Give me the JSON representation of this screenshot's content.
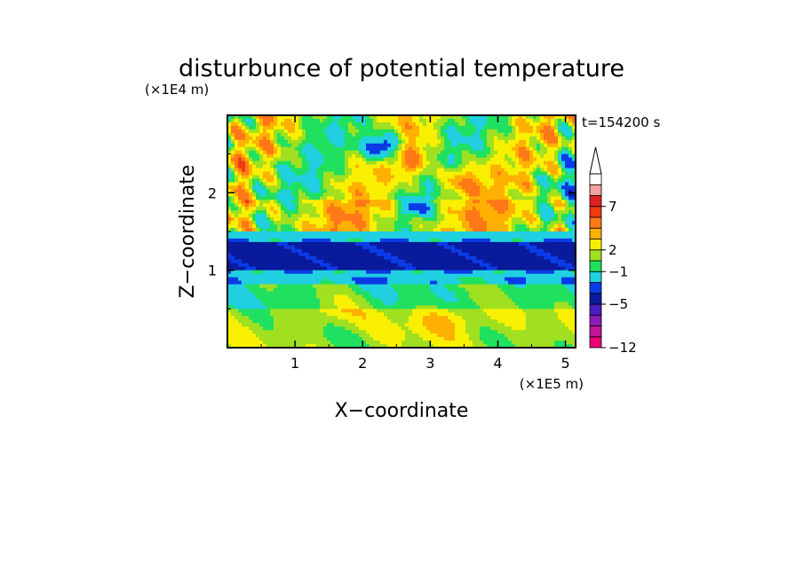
{
  "chart_data": {
    "type": "heatmap",
    "title": "disturbunce of potential temperature",
    "time_label": "t=154200 s",
    "xlabel": "X−coordinate",
    "ylabel": "Z−coordinate",
    "x_unit": "(×1E5 m)",
    "y_unit": "(×1E4 m)",
    "xlim": [
      0,
      5.15
    ],
    "ylim": [
      0,
      3.0
    ],
    "x_ticks": [
      "1",
      "2",
      "3",
      "4",
      "5"
    ],
    "y_ticks": [
      "1",
      "2"
    ],
    "colorbar": {
      "tick_labels": [
        "7",
        "2",
        "−1",
        "−5",
        "−12"
      ],
      "colors": [
        "#e8007a",
        "#c0149a",
        "#8c1ab4",
        "#4a1ec0",
        "#0a1a9c",
        "#0a3be6",
        "#20d0e0",
        "#20e060",
        "#a0e020",
        "#f8f000",
        "#ffb000",
        "#ff7818",
        "#f03a10",
        "#e02020",
        "#f3a0a0",
        "#ffffff"
      ],
      "extend": "max"
    },
    "bands": [
      {
        "z": [
          0.0,
          0.5
        ],
        "value": 0.5,
        "description_color": "#a0e020"
      },
      {
        "z": [
          0.5,
          0.8
        ],
        "value": -0.5,
        "description_color": "#20e060"
      },
      {
        "z": [
          0.8,
          1.0
        ],
        "value": -2.0,
        "description_color": "#20d0e0"
      },
      {
        "z": [
          1.0,
          1.35
        ],
        "value": -5.0,
        "description_color": "#0a3be6"
      },
      {
        "z": [
          1.35,
          1.5
        ],
        "value": -2.0,
        "description_color": "#20d0e0"
      },
      {
        "z": [
          1.5,
          1.9
        ],
        "value": 1.5,
        "description_color": "#f8f000"
      },
      {
        "z": [
          1.9,
          3.0
        ],
        "value": 0.5,
        "description_color": "#a0e020"
      }
    ]
  }
}
